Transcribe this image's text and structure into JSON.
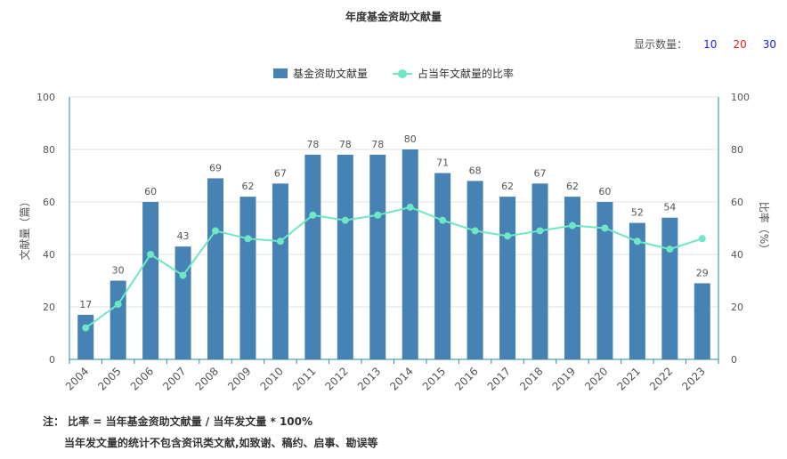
{
  "title": "年度基金资助文献量",
  "display_count": {
    "label": "显示数量：",
    "options": [
      {
        "label": "10",
        "color": "#1a1aff"
      },
      {
        "label": "20",
        "color": "#e02020"
      },
      {
        "label": "30",
        "color": "#1a1aff"
      }
    ]
  },
  "notes": {
    "line1": "注：  比率 = 当年基金资助文献量 / 当年发文量 * 100%",
    "line2": "当年发文量的统计不包含资讯类文献,如致谢、稿约、启事、勘误等"
  },
  "chart_data": {
    "type": "bar",
    "categories": [
      "2004",
      "2005",
      "2006",
      "2007",
      "2008",
      "2009",
      "2010",
      "2011",
      "2012",
      "2013",
      "2014",
      "2015",
      "2016",
      "2017",
      "2018",
      "2019",
      "2020",
      "2021",
      "2022",
      "2023"
    ],
    "series": [
      {
        "name": "基金资助文献量",
        "type": "bar",
        "color": "#4682b4",
        "values": [
          17,
          30,
          60,
          43,
          69,
          62,
          67,
          78,
          78,
          78,
          80,
          71,
          68,
          62,
          67,
          62,
          60,
          52,
          54,
          29
        ]
      },
      {
        "name": "占当年文献量的比率",
        "type": "line",
        "color": "#6ee8c4",
        "values": [
          12,
          21,
          40,
          32,
          49,
          46,
          45,
          55,
          53,
          55,
          58,
          53,
          49,
          47,
          49,
          51,
          50,
          45,
          42,
          46
        ]
      }
    ],
    "ylabel_left": "文献量（篇）",
    "ylabel_right": "比率（%）",
    "ylim_left": [
      0,
      100
    ],
    "ylim_right": [
      0,
      100
    ],
    "yticks": [
      0,
      20,
      40,
      60,
      80,
      100
    ],
    "grid": true,
    "legend_position": "top-center"
  }
}
